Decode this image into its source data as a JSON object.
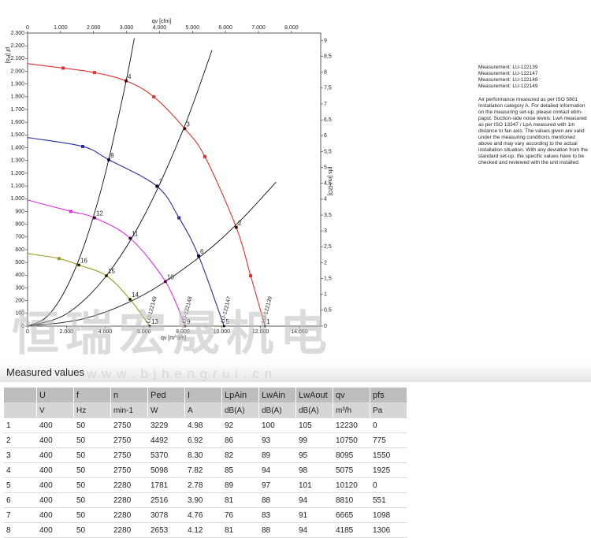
{
  "chart_data": {
    "type": "line",
    "x_label_top": "qv [cfm]",
    "x_label": "qv [m^3/h]",
    "y_label": "pf [Pa]",
    "y2_label": "pfs [in H2O]",
    "xlim": [
      0,
      15100
    ],
    "xticks": [
      0,
      {
        "value": 2000,
        "label": "2.000"
      },
      {
        "value": 4000,
        "label": "4.000"
      },
      {
        "value": 6000,
        "label": "6.000"
      },
      {
        "value": 8000,
        "label": "8.000"
      },
      {
        "value": 10000,
        "label": "10.000"
      },
      {
        "value": 12000,
        "label": "12.000"
      },
      {
        "value": 14000,
        "label": "14.000"
      }
    ],
    "x2lim": [
      0,
      8887
    ],
    "x2ticks": [
      0,
      {
        "value": 1000,
        "label": "1.000"
      },
      {
        "value": 2000,
        "label": "2.000"
      },
      {
        "value": 3000,
        "label": "3.000"
      },
      {
        "value": 4000,
        "label": "4.000"
      },
      {
        "value": 5000,
        "label": "5.000"
      },
      {
        "value": 6000,
        "label": "6.000"
      },
      {
        "value": 7000,
        "label": "7.000"
      },
      {
        "value": 8000,
        "label": "8.000"
      }
    ],
    "ylim": [
      0,
      2300
    ],
    "yticks": [
      0,
      100,
      200,
      300,
      400,
      500,
      600,
      700,
      800,
      900,
      {
        "value": 1000,
        "label": "1.000"
      },
      {
        "value": 1100,
        "label": "1.100"
      },
      {
        "value": 1200,
        "label": "1.200"
      },
      {
        "value": 1300,
        "label": "1.300"
      },
      {
        "value": 1400,
        "label": "1.400"
      },
      {
        "value": 1500,
        "label": "1.500"
      },
      {
        "value": 1600,
        "label": "1.600"
      },
      {
        "value": 1700,
        "label": "1.700"
      },
      {
        "value": 1800,
        "label": "1.800"
      },
      {
        "value": 1900,
        "label": "1.900"
      },
      {
        "value": 2000,
        "label": "2.000"
      },
      {
        "value": 2100,
        "label": "2.100"
      },
      {
        "value": 2200,
        "label": "2.200"
      },
      {
        "value": 2300,
        "label": "2.300"
      }
    ],
    "y2lim": [
      0,
      9.234
    ],
    "y2ticks": [
      0,
      {
        "value": 0.5,
        "label": "0,5"
      },
      1,
      {
        "value": 1.5,
        "label": "1,5"
      },
      2,
      {
        "value": 2.5,
        "label": "2,5"
      },
      3,
      {
        "value": 3.5,
        "label": "3,5"
      },
      4,
      {
        "value": 4.5,
        "label": "4,5"
      },
      5,
      {
        "value": 5.5,
        "label": "5,5"
      },
      6,
      {
        "value": 6.5,
        "label": "6,5"
      },
      7,
      {
        "value": 7.5,
        "label": "7,5"
      },
      8,
      {
        "value": 8.5,
        "label": "8,5"
      },
      9
    ],
    "series": [
      {
        "name": "LU-122139",
        "color": "#e2302c",
        "x": [
          0,
          1830,
          3450,
          5075,
          6500,
          8095,
          9135,
          10750,
          11490,
          12230
        ],
        "values": [
          2060,
          2025,
          1990,
          1925,
          1800,
          1550,
          1330,
          775,
          395,
          0
        ]
      },
      {
        "name": "LU-122147",
        "color": "#2a2aa8",
        "x": [
          0,
          2840,
          4185,
          6665,
          7800,
          8810,
          10120
        ],
        "values": [
          1480,
          1410,
          1306,
          1098,
          850,
          551,
          0
        ]
      },
      {
        "name": "LU-122148",
        "color": "#e02ce0",
        "x": [
          0,
          2230,
          3450,
          5280,
          7100,
          8120
        ],
        "values": [
          990,
          900,
          850,
          690,
          350,
          0
        ]
      },
      {
        "name": "LU-122149",
        "color": "#9a9a1e",
        "x": [
          0,
          1620,
          2640,
          4060,
          5280,
          6290
        ],
        "values": [
          570,
          530,
          480,
          395,
          210,
          0
        ]
      },
      {
        "color": "#111111",
        "x": [
          0,
          1000,
          2000,
          3000,
          4000,
          5000,
          5500
        ],
        "values": [
          0,
          75,
          299,
          672,
          1195,
          1868,
          2260
        ]
      },
      {
        "color": "#111111",
        "x": [
          0,
          2000,
          4000,
          6000,
          8000,
          9500
        ],
        "values": [
          0,
          96,
          384,
          864,
          1536,
          2166
        ]
      },
      {
        "color": "#111111",
        "x": [
          0,
          3000,
          6000,
          9000,
          11000,
          12800
        ],
        "values": [
          0,
          62,
          248,
          559,
          835,
          1130
        ]
      }
    ],
    "operating_points": [
      {
        "label": "1",
        "x": 12230,
        "y": 0
      },
      {
        "label": "2",
        "x": 10750,
        "y": 775
      },
      {
        "label": "3",
        "x": 8095,
        "y": 1550
      },
      {
        "label": "4",
        "x": 5075,
        "y": 1925
      },
      {
        "label": "5",
        "x": 10120,
        "y": 0
      },
      {
        "label": "6",
        "x": 8810,
        "y": 551
      },
      {
        "label": "7",
        "x": 6665,
        "y": 1098
      },
      {
        "label": "8",
        "x": 4185,
        "y": 1306
      },
      {
        "label": "9",
        "x": 8120,
        "y": 0
      },
      {
        "label": "10",
        "x": 7100,
        "y": 350
      },
      {
        "label": "11",
        "x": 5280,
        "y": 690
      },
      {
        "label": "12",
        "x": 3450,
        "y": 850
      },
      {
        "label": "13",
        "x": 6290,
        "y": 0
      },
      {
        "label": "14",
        "x": 5280,
        "y": 210
      },
      {
        "label": "15",
        "x": 4060,
        "y": 395
      },
      {
        "label": "16",
        "x": 2640,
        "y": 480
      }
    ]
  },
  "notes": {
    "measurements": [
      "Measurement: LU-122139",
      "Measurement: LU-122147",
      "Measurement: LU-122148",
      "Measurement: LU-122149"
    ],
    "text": "Air performance measured as per ISO 5801 Installation category A. For detailed information on the measuring set-up, please contact ebm-papst. Suction-side noise levels: LwA measured as per ISO 13347 / LpA measured with 1m distance to fan axis. The values given are valid under the measuring conditions mentioned above and may vary according to the actual installation situation. With any deviation from the standard set-up, the specific values have to be checked and reviewed with the unit installed."
  },
  "watermark": {
    "cn": "恒瑞宏晟机电",
    "url": "w w w . b j h e n g r u i . c n"
  },
  "table": {
    "title": "Measured values",
    "header": [
      "",
      "U",
      "f",
      "n",
      "Ped",
      "I",
      "LpAin",
      "LwAin",
      "LwAout",
      "qv",
      "pfs"
    ],
    "units": [
      "",
      "V",
      "Hz",
      "min-1",
      "W",
      "A",
      "dB(A)",
      "dB(A)",
      "dB(A)",
      "m³/h",
      "Pa"
    ],
    "rows": [
      [
        "1",
        "400",
        "50",
        "2750",
        "3229",
        "4.98",
        "92",
        "100",
        "105",
        "12230",
        "0"
      ],
      [
        "2",
        "400",
        "50",
        "2750",
        "4492",
        "6.92",
        "86",
        "93",
        "99",
        "10750",
        "775"
      ],
      [
        "3",
        "400",
        "50",
        "2750",
        "5370",
        "8.30",
        "82",
        "89",
        "95",
        "8095",
        "1550"
      ],
      [
        "4",
        "400",
        "50",
        "2750",
        "5098",
        "7.82",
        "85",
        "94",
        "98",
        "5075",
        "1925"
      ],
      [
        "5",
        "400",
        "50",
        "2280",
        "1781",
        "2.78",
        "89",
        "97",
        "101",
        "10120",
        "0"
      ],
      [
        "6",
        "400",
        "50",
        "2280",
        "2516",
        "3.90",
        "81",
        "88",
        "94",
        "8810",
        "551"
      ],
      [
        "7",
        "400",
        "50",
        "2280",
        "3078",
        "4.76",
        "76",
        "83",
        "91",
        "6665",
        "1098"
      ],
      [
        "8",
        "400",
        "50",
        "2280",
        "2653",
        "4.12",
        "81",
        "88",
        "94",
        "4185",
        "1306"
      ]
    ]
  }
}
